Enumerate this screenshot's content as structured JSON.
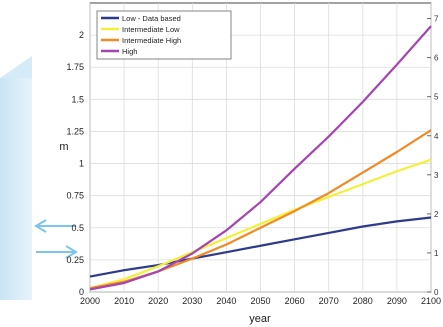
{
  "chart_data": {
    "type": "line",
    "title": "",
    "xlabel": "year",
    "ylabel": "m",
    "xlim": [
      2000,
      2100
    ],
    "ylim": [
      0,
      2.25
    ],
    "x_ticks": [
      "2000",
      "2010",
      "2020",
      "2030",
      "2040",
      "2050",
      "2060",
      "2070",
      "2080",
      "2090",
      "2100"
    ],
    "y_ticks": [
      "0",
      "0.25",
      "0.5",
      "0.75",
      "1",
      "1.25",
      "1.5",
      "1.75",
      "2"
    ],
    "y2_ticks": [
      "0",
      "1",
      "2",
      "3",
      "4",
      "5",
      "6",
      "7"
    ],
    "grid": true,
    "legend_position": "top-left",
    "x": [
      2000,
      2010,
      2020,
      2030,
      2040,
      2050,
      2060,
      2070,
      2080,
      2090,
      2100
    ],
    "series": [
      {
        "name": "Low - Data based",
        "color": "#2e3a8c",
        "values": [
          0.12,
          0.17,
          0.21,
          0.26,
          0.31,
          0.36,
          0.41,
          0.46,
          0.51,
          0.55,
          0.58
        ]
      },
      {
        "name": "Intermediate Low",
        "color": "#f4f03a",
        "values": [
          0.03,
          0.1,
          0.2,
          0.31,
          0.42,
          0.53,
          0.64,
          0.74,
          0.84,
          0.94,
          1.03
        ]
      },
      {
        "name": "Intermediate High",
        "color": "#f08a24",
        "values": [
          0.03,
          0.08,
          0.16,
          0.26,
          0.37,
          0.5,
          0.63,
          0.77,
          0.93,
          1.09,
          1.26
        ]
      },
      {
        "name": "High",
        "color": "#a545b3",
        "values": [
          0.02,
          0.07,
          0.16,
          0.3,
          0.48,
          0.7,
          0.96,
          1.21,
          1.48,
          1.77,
          2.07
        ]
      }
    ]
  }
}
